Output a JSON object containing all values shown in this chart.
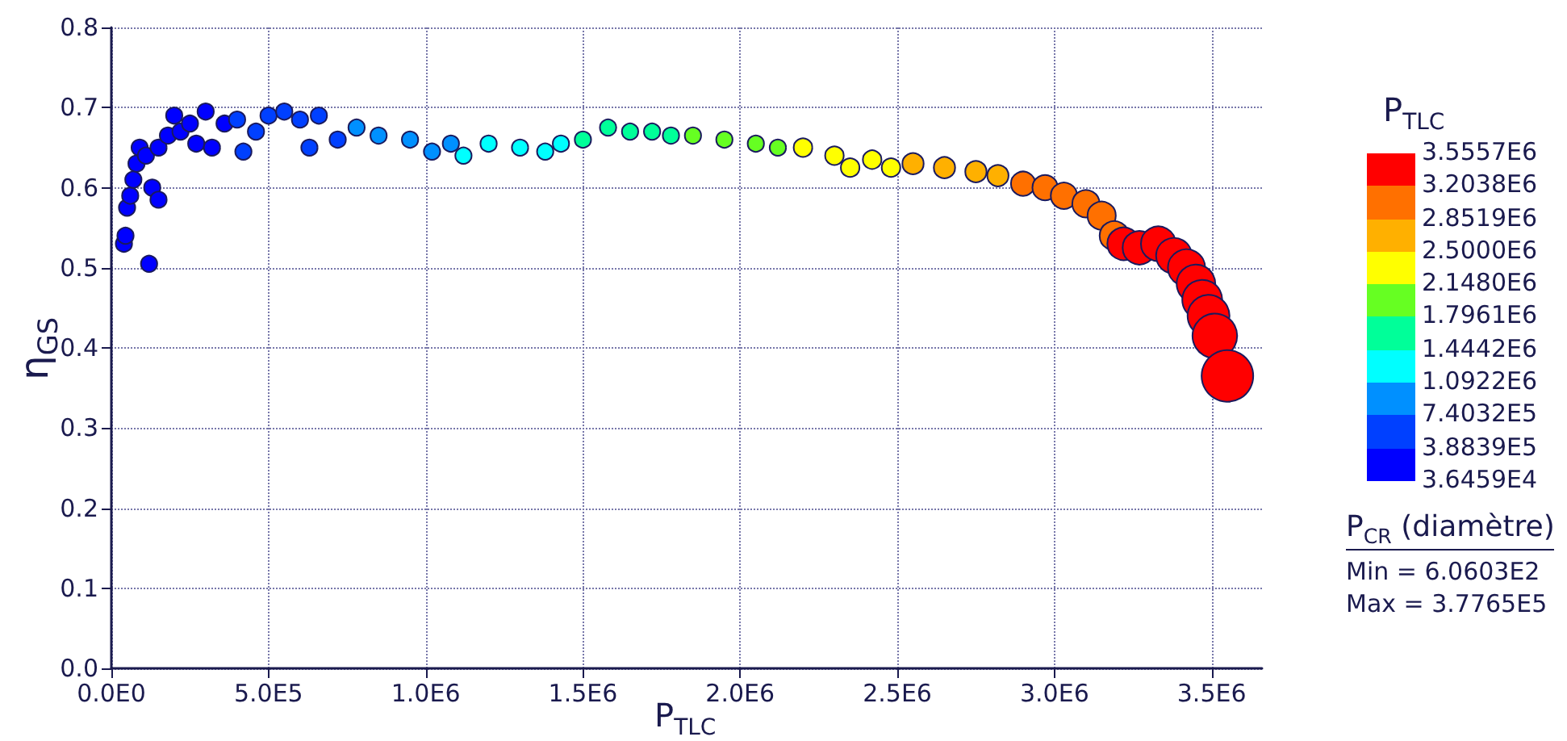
{
  "chart_data": {
    "type": "bubble",
    "xlabel": "P$_{TLC}$",
    "ylabel": "η$_{GS}$",
    "clabel": "P$_{TLC}$",
    "annotations": [
      "P$_{CR}$ (diamètre)",
      "Min = 6.0603E2",
      "Max = 3.7765E5"
    ],
    "x": [
      40000,
      45000,
      50000,
      60000,
      70000,
      80000,
      90000,
      110000,
      120000,
      130000,
      150000,
      150000,
      180000,
      200000,
      220000,
      250000,
      270000,
      300000,
      320000,
      360000,
      400000,
      420000,
      460000,
      500000,
      550000,
      600000,
      630000,
      660000,
      720000,
      780000,
      850000,
      950000,
      1020000,
      1080000,
      1120000,
      1200000,
      1300000,
      1380000,
      1430000,
      1500000,
      1580000,
      1650000,
      1720000,
      1780000,
      1850000,
      1950000,
      2050000,
      2120000,
      2200000,
      2300000,
      2350000,
      2420000,
      2480000,
      2550000,
      2650000,
      2750000,
      2820000,
      2900000,
      2970000,
      3030000,
      3100000,
      3150000,
      3190000,
      3220000,
      3270000,
      3330000,
      3380000,
      3420000,
      3450000,
      3470000,
      3490000,
      3510000,
      3550000
    ],
    "series": [
      {
        "values": [
          0.53,
          0.54,
          0.575,
          0.59,
          0.61,
          0.63,
          0.65,
          0.64,
          0.505,
          0.6,
          0.585,
          0.65,
          0.665,
          0.69,
          0.67,
          0.68,
          0.655,
          0.695,
          0.65,
          0.68,
          0.685,
          0.645,
          0.67,
          0.69,
          0.695,
          0.685,
          0.65,
          0.69,
          0.66,
          0.675,
          0.665,
          0.66,
          0.645,
          0.655,
          0.64,
          0.655,
          0.65,
          0.645,
          0.655,
          0.66,
          0.675,
          0.67,
          0.67,
          0.665,
          0.665,
          0.66,
          0.655,
          0.65,
          0.65,
          0.64,
          0.625,
          0.635,
          0.625,
          0.63,
          0.625,
          0.62,
          0.615,
          0.605,
          0.6,
          0.59,
          0.58,
          0.565,
          0.54,
          0.53,
          0.525,
          0.53,
          0.515,
          0.5,
          0.48,
          0.46,
          0.44,
          0.415,
          0.365
        ],
        "sizes": [
          0.1,
          0.1,
          0.1,
          0.1,
          0.1,
          0.1,
          0.1,
          0.1,
          0.1,
          0.1,
          0.1,
          0.1,
          0.1,
          0.1,
          0.1,
          0.1,
          0.1,
          0.1,
          0.1,
          0.1,
          0.1,
          0.1,
          0.1,
          0.1,
          0.1,
          0.1,
          0.1,
          0.1,
          0.1,
          0.1,
          0.1,
          0.1,
          0.1,
          0.1,
          0.1,
          0.1,
          0.1,
          0.1,
          0.1,
          0.1,
          0.1,
          0.1,
          0.1,
          0.1,
          0.1,
          0.1,
          0.1,
          0.1,
          0.13,
          0.13,
          0.13,
          0.13,
          0.13,
          0.17,
          0.17,
          0.17,
          0.17,
          0.22,
          0.24,
          0.26,
          0.28,
          0.3,
          0.32,
          0.4,
          0.42,
          0.45,
          0.48,
          0.52,
          0.56,
          0.6,
          0.66,
          0.75,
          1
        ],
        "colors": [
          "#0000ff",
          "#0000ff",
          "#0000ff",
          "#0000ff",
          "#0000ff",
          "#0000ff",
          "#0000ff",
          "#0000ff",
          "#0000ff",
          "#0000ff",
          "#0000ff",
          "#0000ff",
          "#0000ff",
          "#0000ff",
          "#0000ff",
          "#0000ff",
          "#0000ff",
          "#0000ff",
          "#0000ff",
          "#0000ff",
          "#0040ff",
          "#0040ff",
          "#0040ff",
          "#0040ff",
          "#0040ff",
          "#0040ff",
          "#0040ff",
          "#0040ff",
          "#0040ff",
          "#0090ff",
          "#0090ff",
          "#0090ff",
          "#0090ff",
          "#0090ff",
          "#00ffff",
          "#00ffff",
          "#00ffff",
          "#00ffff",
          "#00ffff",
          "#00ff99",
          "#00ff99",
          "#00ff99",
          "#00ff99",
          "#00ff99",
          "#66ff22",
          "#66ff22",
          "#66ff22",
          "#66ff22",
          "#ffff00",
          "#ffff00",
          "#ffff00",
          "#ffff00",
          "#ffff00",
          "#ffb000",
          "#ffb000",
          "#ffb000",
          "#ffb000",
          "#ff7000",
          "#ff7000",
          "#ff7000",
          "#ff7000",
          "#ff7000",
          "#ff7000",
          "#ff0000",
          "#ff0000",
          "#ff0000",
          "#ff0000",
          "#ff0000",
          "#ff0000",
          "#ff0000",
          "#ff0000",
          "#ff0000",
          "#ff0000"
        ]
      }
    ],
    "xlim": [
      0,
      3660000
    ],
    "ylim": [
      0,
      0.8
    ],
    "xticks": [
      {
        "value": 0,
        "label": "0.0E0"
      },
      {
        "value": 500000,
        "label": "5.0E5"
      },
      {
        "value": 1000000,
        "label": "1.0E6"
      },
      {
        "value": 1500000,
        "label": "1.5E6"
      },
      {
        "value": 2000000,
        "label": "2.0E6"
      },
      {
        "value": 2500000,
        "label": "2.5E6"
      },
      {
        "value": 3000000,
        "label": "3.0E6"
      },
      {
        "value": 3500000,
        "label": "3.5E6"
      }
    ],
    "yticks": [
      {
        "value": 0,
        "label": "0.0"
      },
      {
        "value": 0.1,
        "label": "0.1"
      },
      {
        "value": 0.2,
        "label": "0.2"
      },
      {
        "value": 0.3,
        "label": "0.3"
      },
      {
        "value": 0.4,
        "label": "0.4"
      },
      {
        "value": 0.5,
        "label": "0.5"
      },
      {
        "value": 0.6,
        "label": "0.6"
      },
      {
        "value": 0.7,
        "label": "0.7"
      },
      {
        "value": 0.8,
        "label": "0.8"
      }
    ],
    "clim": [
      36459,
      3555700
    ],
    "cticks": [
      {
        "value": 36459,
        "label": "3.6459E4"
      },
      {
        "value": 388390,
        "label": "3.8839E5"
      },
      {
        "value": 740320,
        "label": "7.4032E5"
      },
      {
        "value": 1092200,
        "label": "1.0922E6"
      },
      {
        "value": 1444200,
        "label": "1.4442E6"
      },
      {
        "value": 1796100,
        "label": "1.7961E6"
      },
      {
        "value": 2148000,
        "label": "2.1480E6"
      },
      {
        "value": 2500000,
        "label": "2.5000E6"
      },
      {
        "value": 2851900,
        "label": "2.8519E6"
      },
      {
        "value": 3203800,
        "label": "3.2038E6"
      },
      {
        "value": 3555700,
        "label": "3.5557E6"
      }
    ],
    "grid": true,
    "marker": "circle"
  }
}
